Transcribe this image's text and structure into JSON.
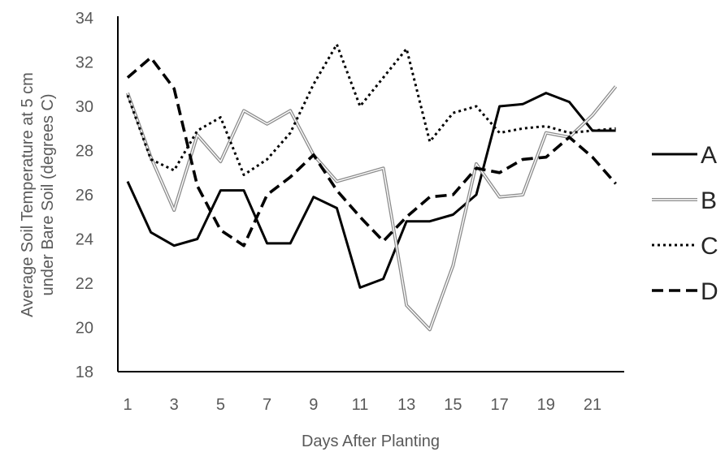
{
  "chart_data": {
    "type": "line",
    "title": "",
    "xlabel": "Days After Planting",
    "ylabel_lines": [
      "Average Soil Temperature at 5 cm",
      "under Bare Soil (degrees C)"
    ],
    "x": [
      1,
      2,
      3,
      4,
      5,
      6,
      7,
      8,
      9,
      10,
      11,
      12,
      13,
      14,
      15,
      16,
      17,
      18,
      19,
      20,
      21,
      22
    ],
    "xtick_labels": [
      "1",
      "3",
      "5",
      "7",
      "9",
      "11",
      "13",
      "15",
      "17",
      "19",
      "21"
    ],
    "xticks": [
      1,
      3,
      5,
      7,
      9,
      11,
      13,
      15,
      17,
      19,
      21
    ],
    "ylim": [
      18,
      34
    ],
    "yticks": [
      18,
      20,
      22,
      24,
      26,
      28,
      30,
      32,
      34
    ],
    "ytick_labels": [
      "18",
      "20",
      "22",
      "24",
      "26",
      "28",
      "30",
      "32",
      "34"
    ],
    "grid": false,
    "legend_position": "right",
    "series": [
      {
        "name": "A",
        "style": "solid",
        "color": "#000000",
        "values": [
          26.6,
          24.3,
          23.7,
          24.0,
          26.2,
          26.2,
          23.8,
          23.8,
          25.9,
          25.4,
          21.8,
          22.2,
          24.8,
          24.8,
          25.1,
          26.0,
          30.0,
          30.1,
          30.6,
          30.2,
          28.9,
          28.9
        ]
      },
      {
        "name": "B",
        "style": "double",
        "color": "#8c8c8c",
        "values": [
          30.6,
          27.7,
          25.3,
          28.7,
          27.5,
          29.8,
          29.2,
          29.8,
          27.8,
          26.6,
          26.9,
          27.2,
          21.0,
          19.9,
          22.8,
          27.4,
          25.9,
          26.0,
          28.8,
          28.6,
          29.6,
          30.9
        ]
      },
      {
        "name": "C",
        "style": "dotted",
        "color": "#000000",
        "values": [
          30.5,
          27.6,
          27.1,
          28.9,
          29.5,
          26.9,
          27.6,
          28.8,
          31.0,
          32.8,
          30.0,
          31.3,
          32.6,
          28.4,
          29.7,
          30.0,
          28.8,
          29.0,
          29.1,
          28.8,
          28.9,
          29.0
        ]
      },
      {
        "name": "D",
        "style": "dashed",
        "color": "#000000",
        "values": [
          31.3,
          32.2,
          30.8,
          26.4,
          24.4,
          23.7,
          26.0,
          26.8,
          27.8,
          26.2,
          25.0,
          23.9,
          25.0,
          25.9,
          26.0,
          27.2,
          27.0,
          27.6,
          27.7,
          28.6,
          27.7,
          26.5
        ]
      }
    ]
  }
}
